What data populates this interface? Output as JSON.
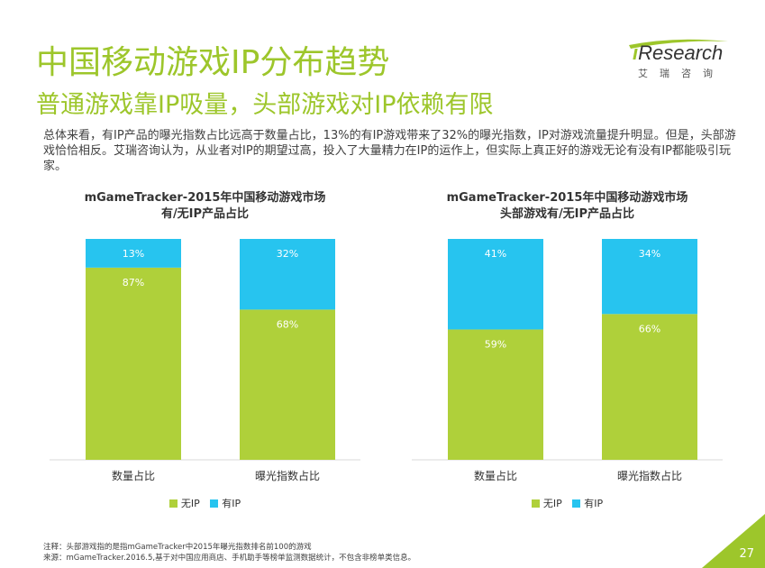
{
  "header": {
    "title": "中国移动游戏IP分布趋势",
    "subtitle": "普通游戏靠IP吸量，头部游戏对IP依赖有限"
  },
  "body_text": "总体来看，有IP产品的曝光指数占比远高于数量占比，13%的有IP游戏带来了32%的曝光指数，IP对游戏流量提升明显。但是，头部游戏恰恰相反。艾瑞咨询认为，从业者对IP的期望过高，投入了大量精力在IP的运作上，但实际上真正好的游戏无论有没有IP都能吸引玩家。",
  "logo": {
    "i": "i",
    "word": "Research",
    "cn": "艾瑞咨询"
  },
  "colors": {
    "accent": "#9dc62b",
    "no_ip": "#afd03a",
    "has_ip": "#27c4ef"
  },
  "chart_data": [
    {
      "type": "bar",
      "stacked": true,
      "title_line1": "mGameTracker-2015年中国移动游戏市场",
      "title_line2": "有/无IP产品占比",
      "categories": [
        "数量占比",
        "曝光指数占比"
      ],
      "series": [
        {
          "name": "无IP",
          "values": [
            87,
            68
          ],
          "labels": [
            "87%",
            "68%"
          ]
        },
        {
          "name": "有IP",
          "values": [
            13,
            32
          ],
          "labels": [
            "13%",
            "32%"
          ]
        }
      ],
      "ylim": [
        0,
        100
      ],
      "legend": "bottom"
    },
    {
      "type": "bar",
      "stacked": true,
      "title_line1": "mGameTracker-2015年中国移动游戏市场",
      "title_line2": "头部游戏有/无IP产品占比",
      "categories": [
        "数量占比",
        "曝光指数占比"
      ],
      "series": [
        {
          "name": "无IP",
          "values": [
            59,
            66
          ],
          "labels": [
            "59%",
            "66%"
          ]
        },
        {
          "name": "有IP",
          "values": [
            41,
            34
          ],
          "labels": [
            "41%",
            "34%"
          ]
        }
      ],
      "ylim": [
        0,
        100
      ],
      "legend": "bottom"
    }
  ],
  "footer": {
    "note": "注释：头部游戏指的是指mGameTracker中2015年曝光指数排名前100的游戏",
    "source": "来源：mGameTracker.2016.5,基于对中国应用商店、手机助手等榜单监测数据统计，不包含非榜单类信息。",
    "page_number": "27"
  }
}
